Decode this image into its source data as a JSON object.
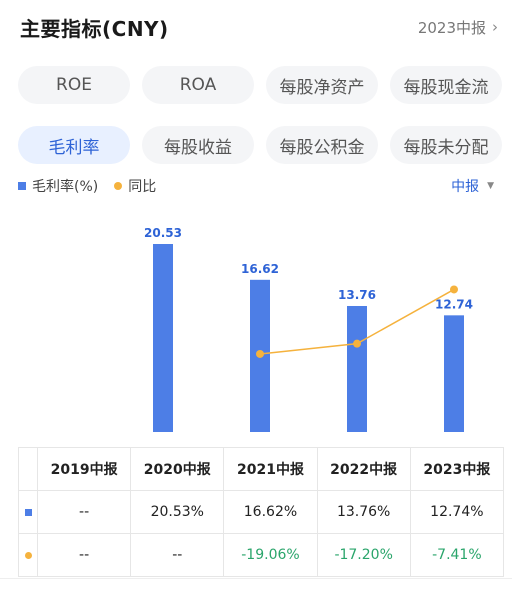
{
  "header": {
    "title": "主要指标(CNY)",
    "period_link": "2023中报"
  },
  "tabs_row1": [
    "ROE",
    "ROA",
    "每股净资产",
    "每股现金流"
  ],
  "tabs_row2": [
    "毛利率",
    "每股收益",
    "每股公积金",
    "每股未分配"
  ],
  "active_tab": "毛利率",
  "legend": {
    "bar_label": "毛利率(%)",
    "line_label": "同比"
  },
  "period_select": "中报",
  "colors": {
    "bar": "#4d7ee6",
    "line": "#f5b23d",
    "accent": "#2e63d6",
    "positive_green": "#2aa56b"
  },
  "chart_data": {
    "type": "bar",
    "categories": [
      "2019中报",
      "2020中报",
      "2021中报",
      "2022中报",
      "2023中报"
    ],
    "series": [
      {
        "name": "毛利率(%)",
        "type": "bar",
        "values": [
          null,
          20.53,
          16.62,
          13.76,
          12.74
        ],
        "labels": [
          "",
          "20.53",
          "16.62",
          "13.76",
          "12.74"
        ]
      },
      {
        "name": "同比",
        "type": "line",
        "values": [
          null,
          null,
          -19.06,
          -17.2,
          -7.41
        ]
      }
    ],
    "bar_ylim": [
      0,
      20.53
    ],
    "line_ylim": [
      -23.4,
      -3.9
    ]
  },
  "table": {
    "headers": [
      "",
      "2019中报",
      "2020中报",
      "2021中报",
      "2022中报",
      "2023中报"
    ],
    "rows": [
      {
        "marker": "bar",
        "cells": [
          "--",
          "20.53%",
          "16.62%",
          "13.76%",
          "12.74%"
        ]
      },
      {
        "marker": "line",
        "cells": [
          "--",
          "--",
          "-19.06%",
          "-17.20%",
          "-7.41%"
        ]
      }
    ]
  }
}
